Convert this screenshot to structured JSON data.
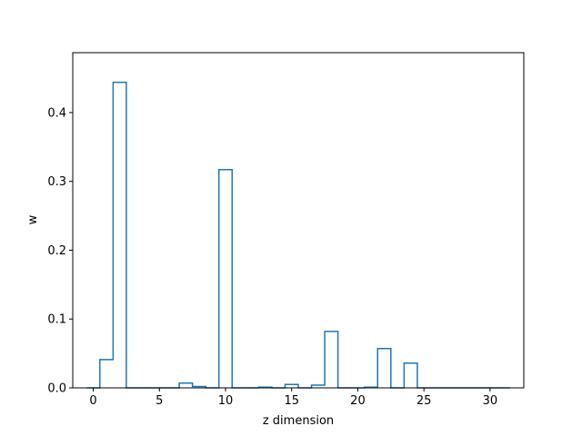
{
  "chart_data": {
    "type": "bar",
    "style": "step-outline",
    "xlabel": "z dimension",
    "ylabel": "w",
    "xlim": [
      -1.55,
      32.55
    ],
    "ylim": [
      0,
      0.487
    ],
    "x_ticks": [
      0,
      5,
      10,
      15,
      20,
      25,
      30
    ],
    "x_tick_labels": [
      "0",
      "5",
      "10",
      "15",
      "20",
      "25",
      "30"
    ],
    "y_ticks": [
      0.0,
      0.1,
      0.2,
      0.3,
      0.4
    ],
    "y_tick_labels": [
      "0.0",
      "0.1",
      "0.2",
      "0.3",
      "0.4"
    ],
    "grid": false,
    "color": "#1f77b4",
    "categories": [
      0,
      1,
      2,
      3,
      4,
      5,
      6,
      7,
      8,
      9,
      10,
      11,
      12,
      13,
      14,
      15,
      16,
      17,
      18,
      19,
      20,
      21,
      22,
      23,
      24,
      25,
      26,
      27,
      28,
      29,
      30,
      31
    ],
    "values": [
      0.0,
      0.041,
      0.444,
      0.0,
      0.0,
      0.0,
      0.0,
      0.007,
      0.002,
      0.0,
      0.317,
      0.0,
      0.0,
      0.001,
      0.0,
      0.005,
      0.0,
      0.004,
      0.082,
      0.0,
      0.0,
      0.001,
      0.057,
      0.0,
      0.036,
      0.0,
      0.0,
      0.0,
      0.0,
      0.0,
      0.0,
      0.0
    ]
  }
}
